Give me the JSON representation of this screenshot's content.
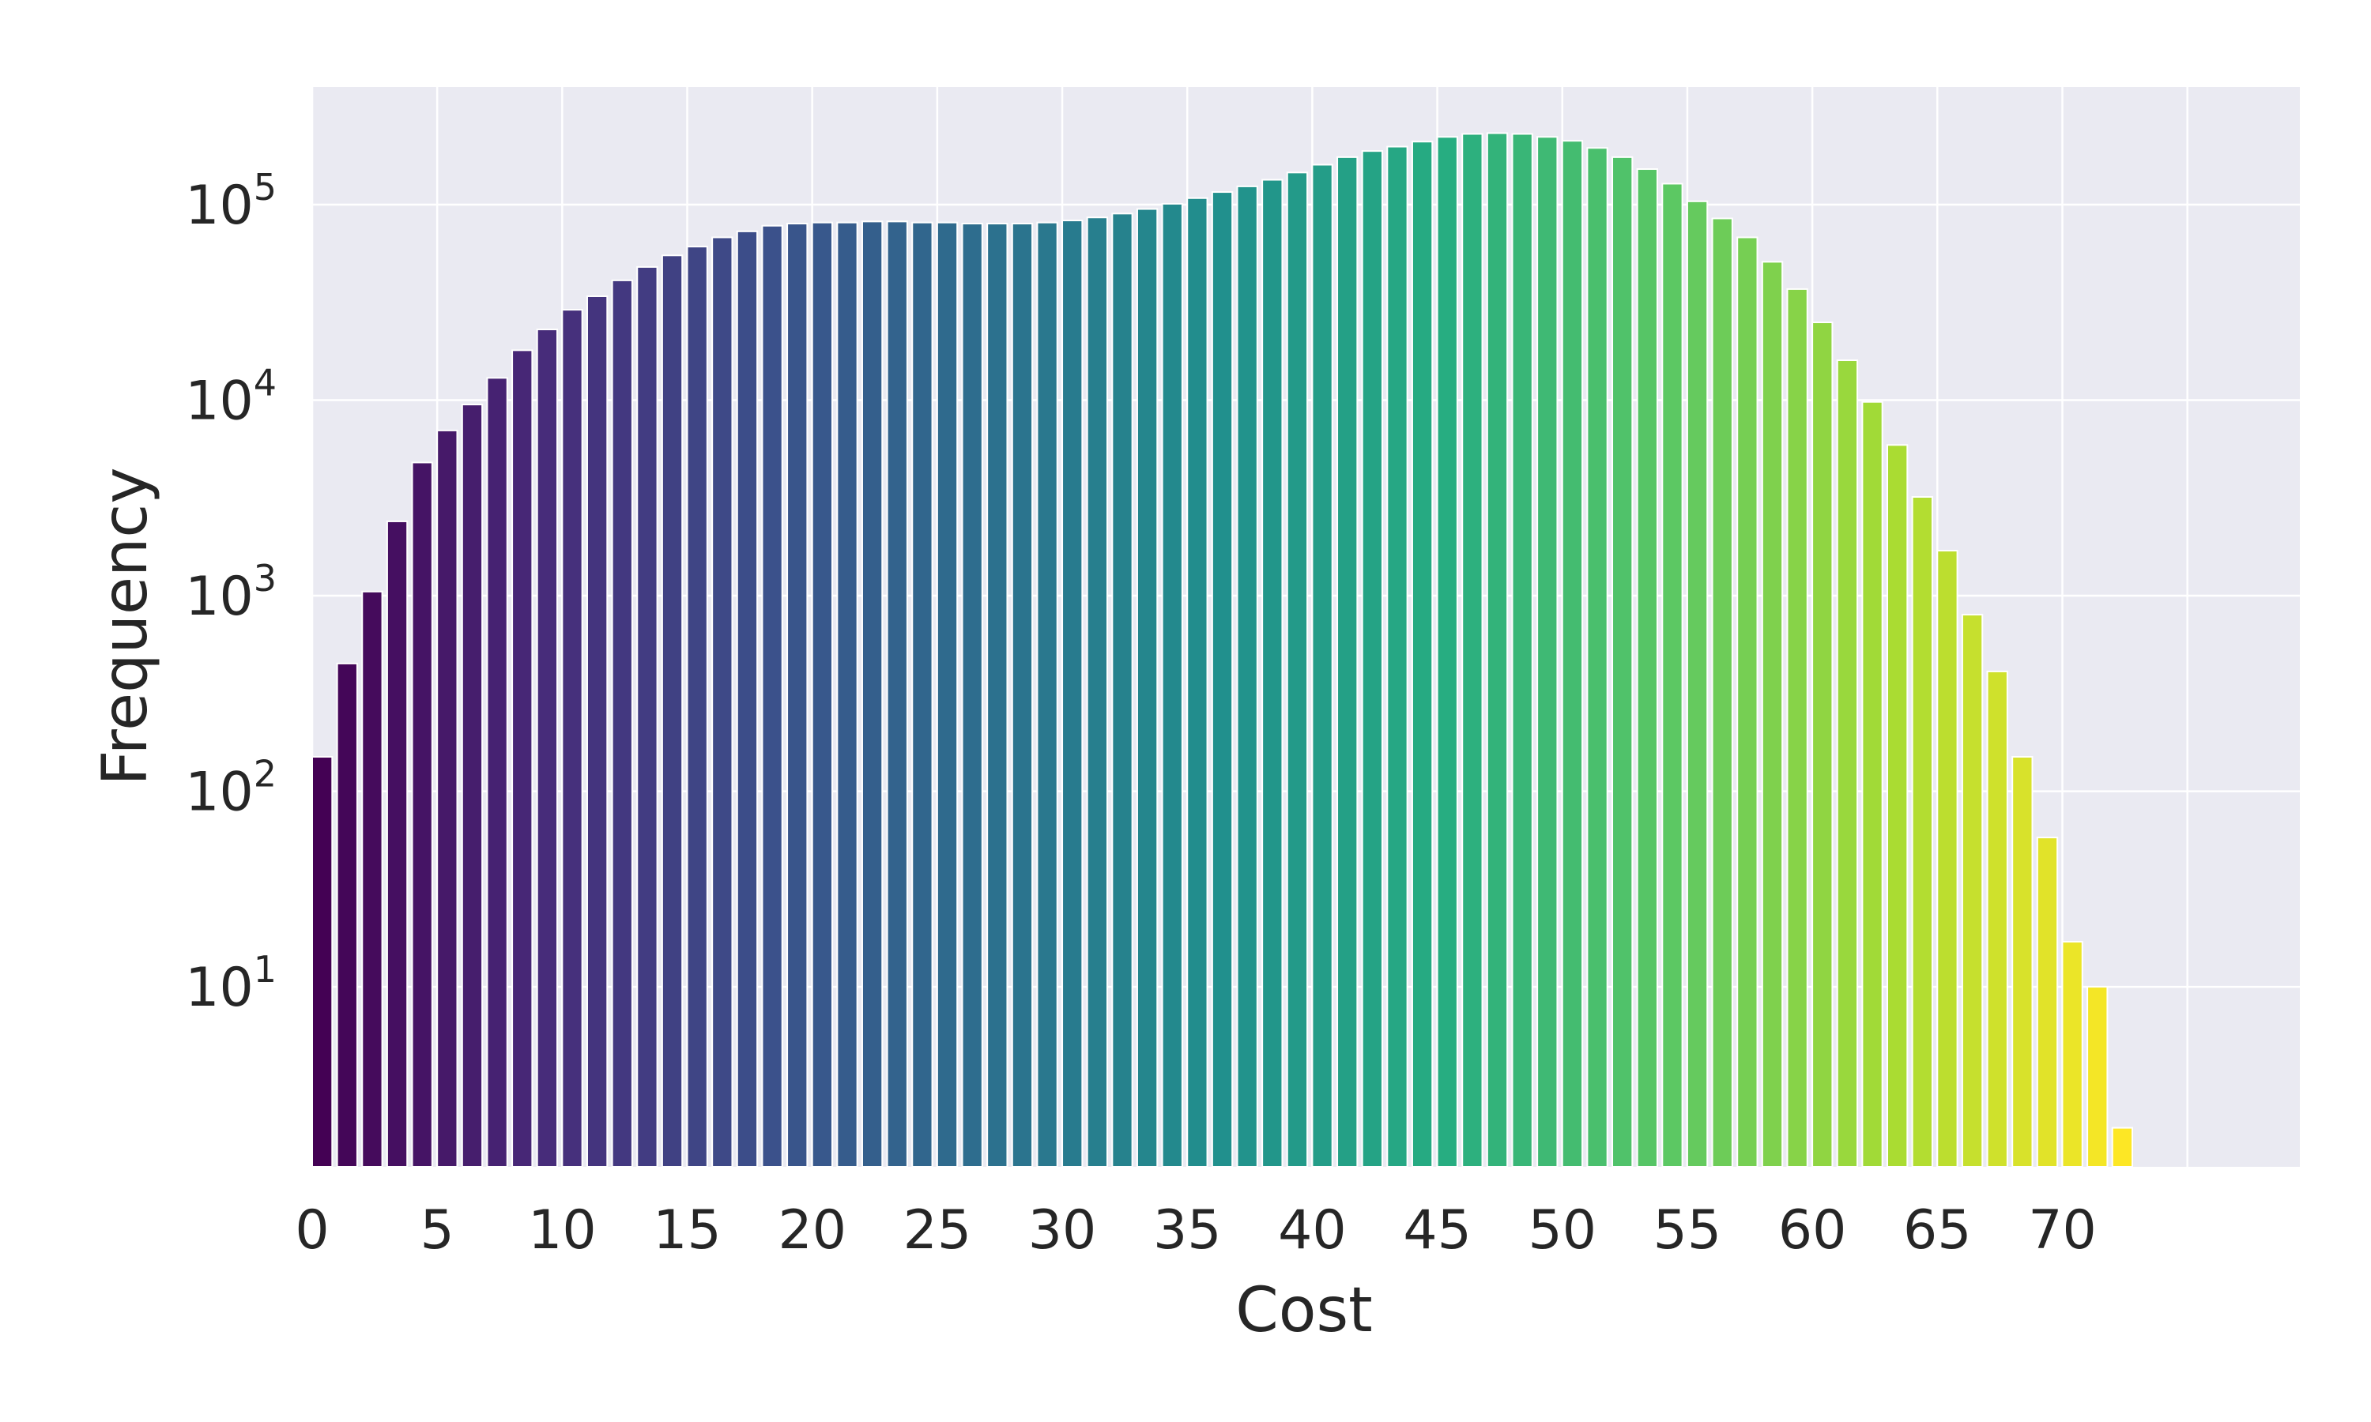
{
  "chart_data": {
    "type": "bar",
    "xlabel": "Cost",
    "ylabel": "Frequency",
    "yscale": "log",
    "ylim": [
      1.2,
      400000
    ],
    "xlim": [
      0,
      79.5
    ],
    "grid": true,
    "background_color": "#eaeaf2",
    "colormap": "viridis",
    "x_ticks": [
      "0",
      "5",
      "10",
      "15",
      "20",
      "25",
      "30",
      "35",
      "40",
      "45",
      "50",
      "55",
      "60",
      "65",
      "70"
    ],
    "y_ticks": [
      {
        "base": "10",
        "exp": "1",
        "value": 10
      },
      {
        "base": "10",
        "exp": "2",
        "value": 100
      },
      {
        "base": "10",
        "exp": "3",
        "value": 1000
      },
      {
        "base": "10",
        "exp": "4",
        "value": 10000
      },
      {
        "base": "10",
        "exp": "5",
        "value": 100000
      }
    ],
    "x": [
      0,
      1,
      2,
      3,
      4,
      5,
      6,
      7,
      8,
      9,
      10,
      11,
      12,
      13,
      14,
      15,
      16,
      17,
      18,
      19,
      20,
      21,
      22,
      23,
      24,
      25,
      26,
      27,
      28,
      29,
      30,
      31,
      32,
      33,
      34,
      35,
      36,
      37,
      38,
      39,
      40,
      41,
      42,
      43,
      44,
      45,
      46,
      47,
      48,
      49,
      50,
      51,
      52,
      53,
      54,
      55,
      56,
      57,
      58,
      59,
      60,
      61,
      62,
      63,
      64,
      65,
      66,
      67,
      68,
      69,
      70,
      71,
      72
    ],
    "values": [
      150,
      450,
      1050,
      2400,
      4800,
      7000,
      9500,
      13000,
      18000,
      23000,
      29000,
      34000,
      41000,
      48000,
      55000,
      61000,
      68000,
      73000,
      78000,
      80000,
      81000,
      81000,
      82000,
      82000,
      81000,
      81000,
      80000,
      80000,
      80000,
      81000,
      83000,
      86000,
      90000,
      95000,
      101000,
      108000,
      116000,
      124000,
      134000,
      146000,
      160000,
      175000,
      188000,
      198000,
      210000,
      222000,
      230000,
      232000,
      230000,
      222000,
      212000,
      195000,
      175000,
      152000,
      128000,
      104000,
      85000,
      68000,
      51000,
      37000,
      25000,
      16000,
      9800,
      5900,
      3200,
      1700,
      800,
      410,
      150,
      58,
      17,
      10,
      1.9
    ]
  }
}
